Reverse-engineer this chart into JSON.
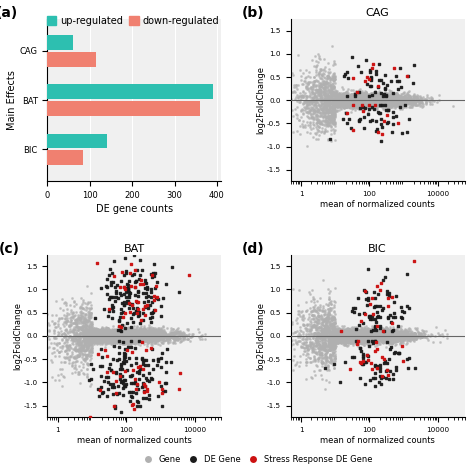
{
  "bar_categories": [
    "BIC",
    "BAT",
    "CAG"
  ],
  "bar_up": [
    140,
    390,
    60
  ],
  "bar_down": [
    85,
    360,
    115
  ],
  "bar_color_up": "#2dbfb0",
  "bar_color_down": "#f08070",
  "bar_xlabel": "DE gene counts",
  "bar_ylabel": "Main Effects",
  "bar_xlim": [
    0,
    410
  ],
  "panel_labels": [
    "(a)",
    "(b)",
    "(c)",
    "(d)"
  ],
  "scatter_ylabel": "log2FoldChange",
  "scatter_xlabel": "mean of normalized counts",
  "scatter_ylim": [
    -1.75,
    1.75
  ],
  "color_gene": "#b0b0b0",
  "color_de": "#1a1a1a",
  "color_stress": "#cc1111",
  "background_color": "#ffffff",
  "plot_bg": "#f0f0f0"
}
